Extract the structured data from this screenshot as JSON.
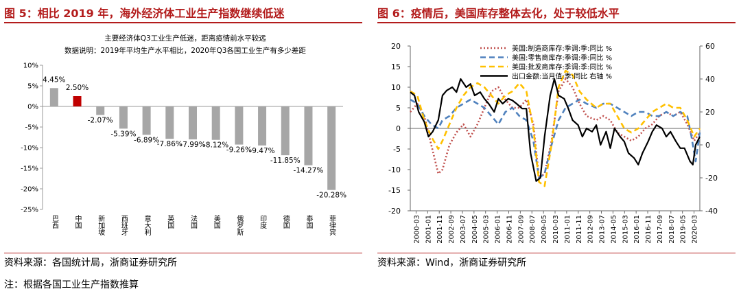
{
  "left": {
    "title": "图 5：相比 2019 年，海外经济体工业生产指数继续低迷",
    "source": "资料来源：各国统计局，浙商证券研究所",
    "note": "注：根据各国工业生产指数推算"
  },
  "right": {
    "title": "图 6：疫情后，美国库存整体去化，处于较低水平",
    "source": "资料来源：Wind，浙商证券研究所"
  },
  "chart_data": [
    {
      "type": "bar",
      "title": "主要经济体Q3工业生产低迷，距离疫情前水平较远",
      "subtitle": "数据说明：2019年平均生产水平相比，2020年Q3各国工业生产有多少差距",
      "categories": [
        "巴西",
        "中国",
        "新加坡",
        "西班牙",
        "意大利",
        "英国",
        "法国",
        "美国",
        "俄罗斯",
        "印度",
        "德国",
        "泰国",
        "菲律宾"
      ],
      "values": [
        4.45,
        2.5,
        -2.07,
        -5.39,
        -6.89,
        -7.86,
        -7.99,
        -8.12,
        -9.26,
        -9.47,
        -11.85,
        -14.27,
        -20.28
      ],
      "labels": [
        "4.45%",
        "2.50%",
        "-2.07%",
        "-5.39%",
        "-6.89%",
        "-7.86%",
        "-7.99%",
        "-8.12%",
        "-9.26%",
        "-9.47%",
        "-11.85%",
        "-14.27%",
        "-20.28%"
      ],
      "highlight": "中国",
      "colors": {
        "bar": "#a6a6a6",
        "highlight": "#c00000"
      },
      "ylim": [
        -25,
        10
      ],
      "yticks": [
        10,
        5,
        0,
        -5,
        -10,
        -15,
        -20,
        -25
      ],
      "ytick_labels": [
        "10%",
        "5%",
        "0%",
        "-5%",
        "-10%",
        "-15%",
        "-20%",
        "-25%"
      ]
    },
    {
      "type": "line",
      "legend": [
        "美国:制造商库存:季调:季:同比 %",
        "美国:零售商库存:季调:季:同比 %",
        "美国:批发商库存:季调:季:同比 %",
        "出口金额:当月值:季:同比 右轴 %"
      ],
      "x_tick_labels": [
        "2000-03",
        "2001-01",
        "2001-11",
        "2002-09",
        "2003-07",
        "2004-05",
        "2005-03",
        "2006-01",
        "2006-11",
        "2007-09",
        "2008-07",
        "2009-05",
        "2010-03",
        "2011-01",
        "2011-11",
        "2012-09",
        "2013-07",
        "2014-05",
        "2015-03",
        "2016-01",
        "2016-11",
        "2017-09",
        "2018-07",
        "2019-05",
        "2020-03"
      ],
      "x_range": [
        2000.2,
        2020.9
      ],
      "ylim_left": [
        -20,
        20
      ],
      "yticks_left": [
        20,
        15,
        10,
        5,
        0,
        -5,
        -10,
        -15,
        -20
      ],
      "ylim_right": [
        -40,
        60
      ],
      "yticks_right": [
        60,
        40,
        20,
        0,
        -20,
        -40
      ],
      "series": [
        {
          "name": "美国:制造商库存:季调:季:同比 %",
          "axis": "left",
          "color": "#c0504d",
          "dash": "2,3",
          "x": [
            2000.2,
            2000.7,
            2001.2,
            2001.7,
            2002.2,
            2002.5,
            2003.0,
            2003.5,
            2004.0,
            2004.5,
            2005.0,
            2005.5,
            2006.0,
            2006.5,
            2007.0,
            2007.5,
            2008.0,
            2008.5,
            2009.0,
            2009.4,
            2009.8,
            2010.3,
            2010.8,
            2011.3,
            2011.8,
            2012.3,
            2012.8,
            2013.5,
            2014.0,
            2014.5,
            2015.0,
            2015.5,
            2016.0,
            2016.5,
            2017.0,
            2017.5,
            2018.0,
            2018.5,
            2019.0,
            2019.5,
            2020.0,
            2020.5,
            2020.9
          ],
          "y": [
            4,
            6,
            3,
            -4,
            -11,
            -10,
            -4,
            -1,
            1,
            -2,
            1,
            5,
            9,
            10,
            7,
            5,
            5,
            7,
            1,
            -12,
            -11,
            -3,
            9,
            12,
            10,
            6,
            3,
            2,
            3,
            2,
            -1,
            -2,
            -3,
            -2,
            0,
            1,
            3,
            4,
            3,
            4,
            1,
            -3,
            -1
          ]
        },
        {
          "name": "美国:零售商库存:季调:季:同比 %",
          "axis": "left",
          "color": "#4f81bd",
          "dash": "8,5",
          "x": [
            2000.2,
            2000.7,
            2001.2,
            2001.7,
            2002.2,
            2002.5,
            2003.0,
            2003.5,
            2004.0,
            2004.5,
            2005.0,
            2005.5,
            2006.0,
            2006.5,
            2007.0,
            2007.5,
            2008.0,
            2008.5,
            2009.0,
            2009.4,
            2009.8,
            2010.3,
            2010.8,
            2011.3,
            2011.8,
            2012.3,
            2012.8,
            2013.5,
            2014.0,
            2014.5,
            2015.0,
            2015.5,
            2016.0,
            2016.5,
            2017.0,
            2017.5,
            2018.0,
            2018.5,
            2019.0,
            2019.5,
            2020.0,
            2020.3,
            2020.6,
            2020.9
          ],
          "y": [
            7,
            6,
            3,
            1,
            0,
            2,
            3,
            5,
            6,
            7,
            6,
            5,
            3,
            1,
            4,
            5,
            3,
            2,
            -3,
            -12,
            -11,
            -4,
            2,
            5,
            6,
            7,
            6,
            5,
            6,
            6,
            5,
            4,
            3,
            4,
            4,
            3,
            3,
            4,
            3,
            4,
            3,
            -2,
            -8,
            -1
          ]
        },
        {
          "name": "美国:批发商库存:季调:季:同比 %",
          "axis": "left",
          "color": "#ffc000",
          "dash": "8,5",
          "x": [
            2000.2,
            2000.7,
            2001.2,
            2001.7,
            2002.2,
            2002.5,
            2003.0,
            2003.5,
            2004.0,
            2004.5,
            2005.0,
            2005.5,
            2006.0,
            2006.5,
            2007.0,
            2007.5,
            2008.0,
            2008.5,
            2009.0,
            2009.4,
            2009.8,
            2010.3,
            2010.8,
            2011.3,
            2011.8,
            2012.3,
            2012.8,
            2013.5,
            2014.0,
            2014.5,
            2015.0,
            2015.5,
            2016.0,
            2016.5,
            2017.0,
            2017.5,
            2018.0,
            2018.5,
            2019.0,
            2019.5,
            2020.0,
            2020.5,
            2020.9
          ],
          "y": [
            9,
            8,
            2,
            -2,
            -5,
            -3,
            1,
            5,
            8,
            10,
            11,
            10,
            8,
            6,
            8,
            9,
            11,
            9,
            0,
            -13,
            -14,
            -4,
            10,
            14,
            13,
            9,
            7,
            5,
            6,
            6,
            3,
            0,
            -1,
            0,
            2,
            4,
            5,
            6,
            5,
            5,
            2,
            -2,
            0
          ]
        },
        {
          "name": "出口金额:当月值:季:同比 右轴 %",
          "axis": "right",
          "color": "#000000",
          "dash": "",
          "x": [
            2000.2,
            2000.5,
            2000.8,
            2001.2,
            2001.5,
            2001.8,
            2002.2,
            2002.5,
            2002.8,
            2003.2,
            2003.5,
            2003.8,
            2004.2,
            2004.5,
            2004.8,
            2005.2,
            2005.5,
            2005.8,
            2006.2,
            2006.5,
            2006.8,
            2007.2,
            2007.5,
            2007.8,
            2008.2,
            2008.5,
            2008.8,
            2009.2,
            2009.5,
            2009.8,
            2010.2,
            2010.5,
            2010.8,
            2011.2,
            2011.5,
            2011.8,
            2012.2,
            2012.5,
            2012.8,
            2013.2,
            2013.5,
            2013.8,
            2014.2,
            2014.5,
            2014.8,
            2015.2,
            2015.5,
            2015.8,
            2016.2,
            2016.5,
            2016.8,
            2017.2,
            2017.5,
            2017.8,
            2018.2,
            2018.5,
            2018.8,
            2019.2,
            2019.5,
            2019.8,
            2020.2,
            2020.4,
            2020.6,
            2020.9
          ],
          "y": [
            32,
            30,
            20,
            14,
            5,
            8,
            15,
            30,
            33,
            35,
            32,
            40,
            35,
            37,
            30,
            32,
            28,
            25,
            20,
            28,
            25,
            28,
            27,
            25,
            22,
            22,
            -5,
            -22,
            -20,
            5,
            30,
            40,
            30,
            28,
            22,
            15,
            12,
            5,
            10,
            8,
            12,
            0,
            8,
            -2,
            10,
            5,
            2,
            -5,
            -8,
            -12,
            -5,
            2,
            8,
            12,
            10,
            5,
            8,
            2,
            -2,
            -2,
            -10,
            -12,
            0,
            5
          ]
        }
      ]
    }
  ]
}
